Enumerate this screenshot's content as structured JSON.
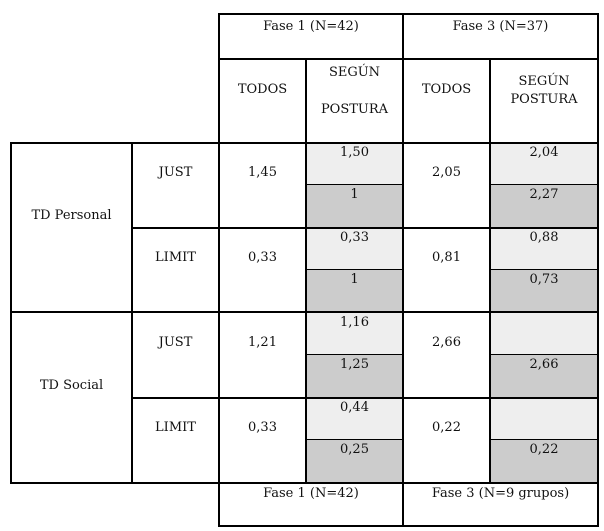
{
  "colors": {
    "shade_light": "#eeeeee",
    "shade_dark": "#cccccc",
    "border": "#000000"
  },
  "header": {
    "fase1": "Fase 1 (N=42)",
    "fase3": "Fase 3 (N=37)",
    "todos": "TODOS",
    "segun_line1": "SEGÚN",
    "segun_line2": "POSTURA"
  },
  "groups": {
    "personal": "TD Personal",
    "social": "TD Social",
    "just": "JUST",
    "limit": "LIMIT"
  },
  "values": {
    "p_just_f1_todos": "1,45",
    "p_just_f1_top": "1,50",
    "p_just_f1_bot": "1",
    "p_just_f3_todos": "2,05",
    "p_just_f3_top": "2,04",
    "p_just_f3_bot": "2,27",
    "p_limit_f1_todos": "0,33",
    "p_limit_f1_top": "0,33",
    "p_limit_f1_bot": "1",
    "p_limit_f3_todos": "0,81",
    "p_limit_f3_top": "0,88",
    "p_limit_f3_bot": "0,73",
    "s_just_f1_todos": "1,21",
    "s_just_f1_top": "1,16",
    "s_just_f1_bot": "1,25",
    "s_just_f3_todos": "2,66",
    "s_just_f3_top": "",
    "s_just_f3_bot": "2,66",
    "s_limit_f1_todos": "0,33",
    "s_limit_f1_top": "0,44",
    "s_limit_f1_bot": "0,25",
    "s_limit_f3_todos": "0,22",
    "s_limit_f3_top": "",
    "s_limit_f3_bot": "0,22"
  },
  "footer": {
    "fase1": "Fase 1 (N=42)",
    "fase3": "Fase 3 (N=9 grupos)"
  }
}
